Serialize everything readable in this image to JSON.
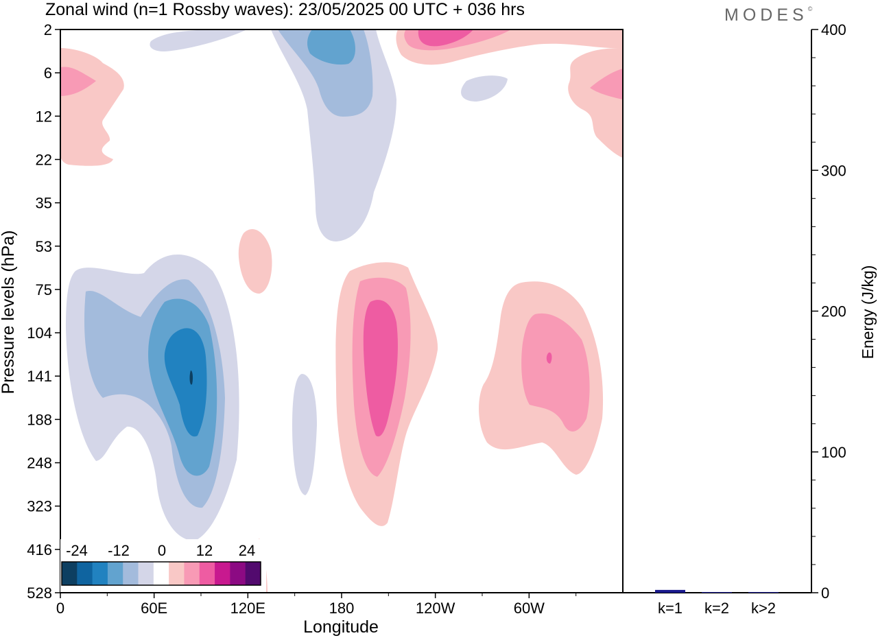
{
  "header": {
    "title": "Zonal wind (n=1 Rossby waves):  23/05/2025  00 UTC  + 036 hrs",
    "brand": "MODES",
    "brand_mark": "©"
  },
  "chart_data": [
    {
      "type": "heatmap",
      "title": "Zonal wind (n=1 Rossby waves):  23/05/2025  00 UTC  + 036 hrs",
      "xlabel": "Longitude",
      "ylabel": "Pressure levels (hPa)",
      "x_ticks": [
        "0",
        "60E",
        "120E",
        "180",
        "120W",
        "60W"
      ],
      "x_range": [
        0,
        360
      ],
      "y_ticks": [
        "2",
        "6",
        "12",
        "22",
        "35",
        "53",
        "75",
        "104",
        "141",
        "188",
        "248",
        "323",
        "416",
        "528"
      ],
      "y_scale": "pressure levels (inverted, top = 2 hPa)",
      "colorbar": {
        "tick_labels": [
          "-24",
          "-12",
          "0",
          "12",
          "24"
        ],
        "levels": [
          -30,
          -24,
          -18,
          -12,
          -6,
          -3,
          3,
          6,
          12,
          18,
          24,
          30
        ],
        "colors": [
          "#0d3f61",
          "#0f64a0",
          "#2182c0",
          "#62a3cf",
          "#a3bbdc",
          "#d4d6e8",
          "#ffffff",
          "#f9c8c6",
          "#f89ab5",
          "#ee5ca2",
          "#c8198f",
          "#8c0a83",
          "#520a6e"
        ]
      },
      "features": [
        {
          "label": "negative anomaly, 60E-110E",
          "lon_range": [
            10,
            115
          ],
          "level_range": [
            "75",
            "416"
          ],
          "min_value": -26
        },
        {
          "label": "positive anomaly, ~160W",
          "lon_range": [
            175,
            240
          ],
          "level_range": [
            "53",
            "323"
          ],
          "max_value": 16
        },
        {
          "label": "positive anomaly, ~40W",
          "lon_range": [
            265,
            345
          ],
          "level_range": [
            "75",
            "248"
          ],
          "max_value": 13
        },
        {
          "label": "negative anomaly, upper levels 180",
          "lon_range": [
            145,
            215
          ],
          "level_range": [
            "2",
            "53"
          ],
          "min_value": -14
        },
        {
          "label": "positive anomaly, upper levels 140W",
          "lon_range": [
            215,
            360
          ],
          "level_range": [
            "2",
            "22"
          ],
          "max_value": 13
        }
      ]
    },
    {
      "type": "bar",
      "ylabel": "Energy (J/kg)",
      "categories": [
        "k=1",
        "k=2",
        "k>2"
      ],
      "values": [
        2,
        0.5,
        0.5
      ],
      "ylim": [
        0,
        400
      ],
      "y_ticks": [
        "0",
        "100",
        "200",
        "300",
        "400"
      ],
      "bar_color": "#1a1a8c"
    }
  ]
}
